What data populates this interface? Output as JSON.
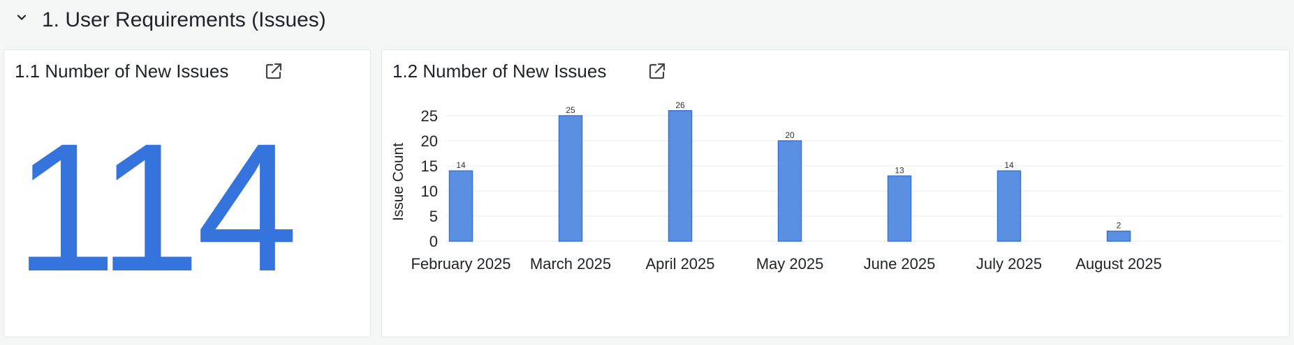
{
  "section": {
    "title": "1. User Requirements (Issues)",
    "collapse_icon": "chevron-down-icon"
  },
  "panels": {
    "p1": {
      "title": "1.1 Number of New Issues",
      "value": "114",
      "open_icon": "external-link-icon",
      "value_color": "#3574dc"
    },
    "p2": {
      "title": "1.2 Number of New Issues",
      "open_icon": "external-link-icon"
    }
  },
  "chart_data": {
    "type": "bar",
    "categories": [
      "February 2025",
      "March 2025",
      "April 2025",
      "May 2025",
      "June 2025",
      "July 2025",
      "August 2025"
    ],
    "values": [
      14,
      25,
      26,
      20,
      13,
      14,
      2
    ],
    "title": "1.2 Number of New Issues",
    "xlabel": "",
    "ylabel": "Issue Count",
    "ylim": [
      0,
      25
    ],
    "yticks": [
      0,
      5,
      10,
      15,
      20,
      25
    ],
    "grid": true,
    "legend": "none",
    "bar_color": "#5b8fe2",
    "bar_border": "#3574dc"
  }
}
